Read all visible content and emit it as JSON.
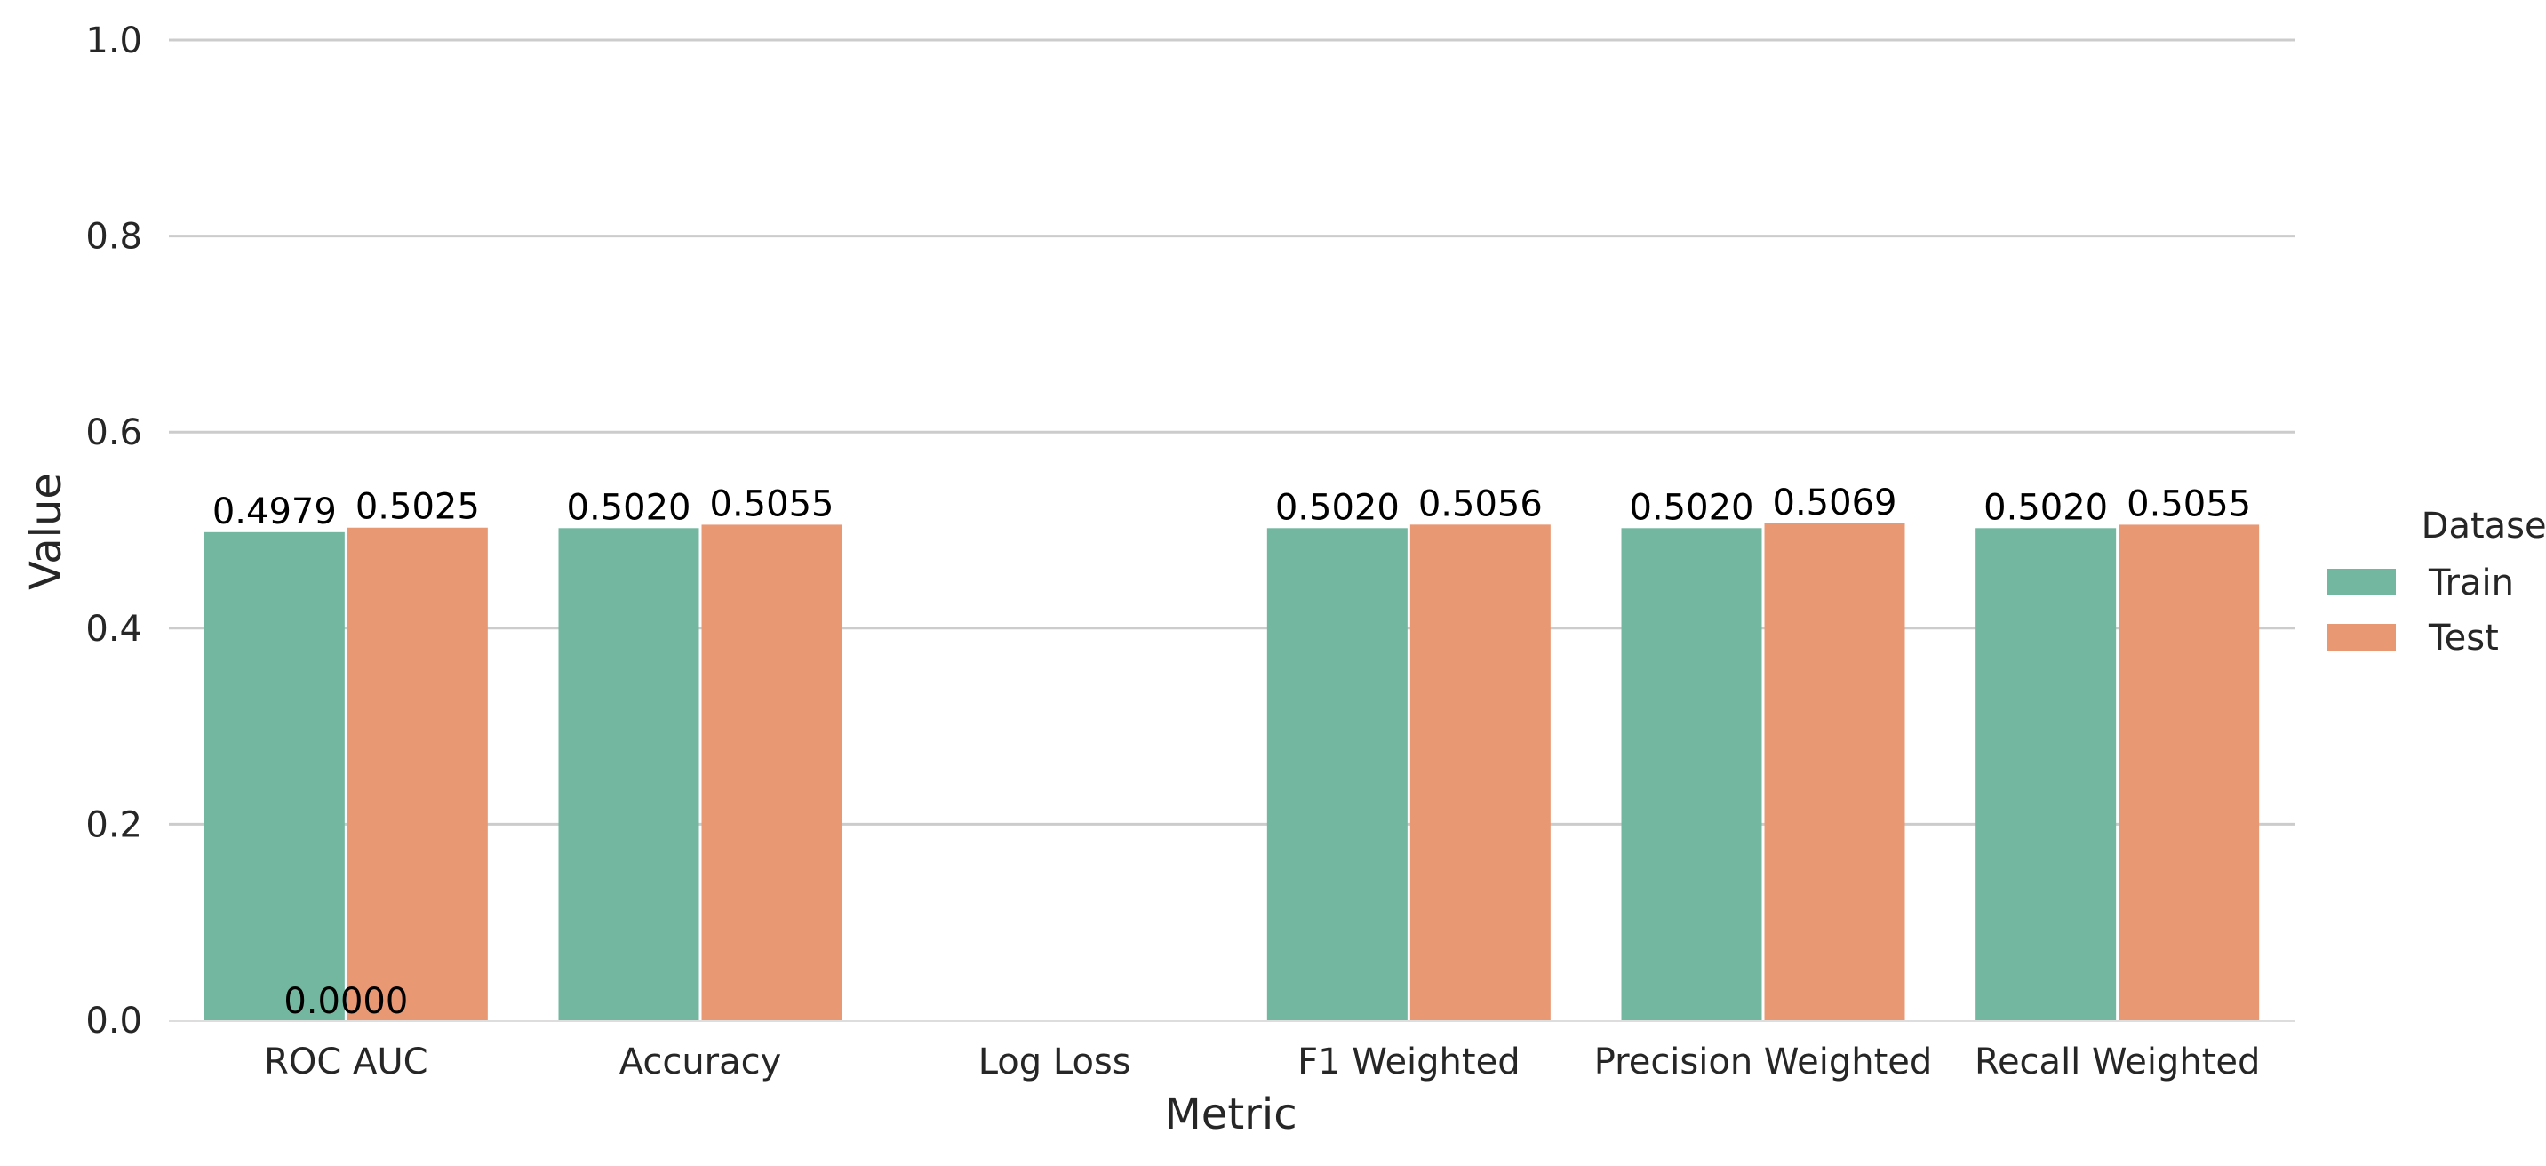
{
  "chart_data": {
    "type": "bar",
    "title": "",
    "xlabel": "Metric",
    "ylabel": "Value",
    "ylim": [
      0,
      1.0
    ],
    "yticks": [
      0.0,
      0.2,
      0.4,
      0.6,
      0.8,
      1.0
    ],
    "ytick_labels": [
      "0.0",
      "0.2",
      "0.4",
      "0.6",
      "0.8",
      "1.0"
    ],
    "grid": "horizontal",
    "categories": [
      "ROC AUC",
      "Accuracy",
      "Log Loss",
      "F1 Weighted",
      "Precision Weighted",
      "Recall Weighted"
    ],
    "series": [
      {
        "name": "Train",
        "color": "#73b7a0",
        "values": [
          0.4979,
          0.502,
          null,
          0.502,
          0.502,
          0.502
        ],
        "labels": [
          "0.4979",
          "0.5020",
          "",
          "0.5020",
          "0.5020",
          "0.5020"
        ]
      },
      {
        "name": "Test",
        "color": "#e99874",
        "values": [
          0.5025,
          0.5055,
          null,
          0.5056,
          0.5069,
          0.5055
        ],
        "labels": [
          "0.5025",
          "0.5055",
          "",
          "0.5056",
          "0.5069",
          "0.5055"
        ]
      }
    ],
    "annotations": [
      {
        "text": "0.0000",
        "category": "ROC AUC",
        "value": 0.0
      }
    ],
    "legend": {
      "title": "Dataset",
      "placement": "right",
      "entries": [
        "Train",
        "Test"
      ]
    }
  }
}
